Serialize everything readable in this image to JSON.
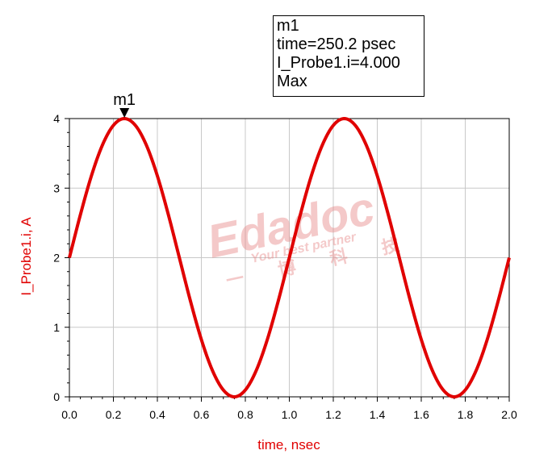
{
  "chart_data": {
    "type": "line",
    "xlabel": "time, nsec",
    "ylabel": "I_Probe1.i, A",
    "xlim": [
      0.0,
      2.0
    ],
    "ylim": [
      0,
      4
    ],
    "x_ticks": [
      "0.0",
      "0.2",
      "0.4",
      "0.6",
      "0.8",
      "1.0",
      "1.2",
      "1.4",
      "1.6",
      "1.8",
      "2.0"
    ],
    "y_ticks": [
      "0",
      "1",
      "2",
      "3",
      "4"
    ],
    "grid": true,
    "series": [
      {
        "color": "#e00000",
        "x": [
          0.0,
          0.05,
          0.1,
          0.15,
          0.2,
          0.25,
          0.3,
          0.35,
          0.4,
          0.45,
          0.5,
          0.55,
          0.6,
          0.65,
          0.7,
          0.75,
          0.8,
          0.85,
          0.9,
          0.95,
          1.0,
          1.05,
          1.1,
          1.15,
          1.2,
          1.25,
          1.3,
          1.35,
          1.4,
          1.45,
          1.5,
          1.55,
          1.6,
          1.65,
          1.7,
          1.75,
          1.8,
          1.85,
          1.9,
          1.95,
          2.0
        ],
        "values": [
          2.0,
          2.618,
          3.176,
          3.618,
          3.902,
          4.0,
          3.902,
          3.618,
          3.176,
          2.618,
          2.0,
          1.382,
          0.824,
          0.382,
          0.098,
          0.0,
          0.098,
          0.382,
          0.824,
          1.382,
          2.0,
          2.618,
          3.176,
          3.618,
          3.902,
          4.0,
          3.902,
          3.618,
          3.176,
          2.618,
          2.0,
          1.382,
          0.824,
          0.382,
          0.098,
          0.0,
          0.098,
          0.382,
          0.824,
          1.382,
          2.0
        ]
      }
    ],
    "markers": [
      {
        "name": "m1",
        "x": 0.2502,
        "y": 4.0
      }
    ]
  },
  "marker_readout": {
    "name": "m1",
    "time_line": "time=250.2 psec",
    "value_line": "I_Probe1.i=4.000",
    "mode": "Max"
  },
  "watermark": {
    "brand": "Edadoc",
    "tagline": "Your best partner",
    "chinese": "一 博 科 技"
  },
  "colors": {
    "trace": "#e00000",
    "axis_label": "#e00000",
    "grid": "#c8c8c8",
    "watermark": "#f2b8b8"
  }
}
